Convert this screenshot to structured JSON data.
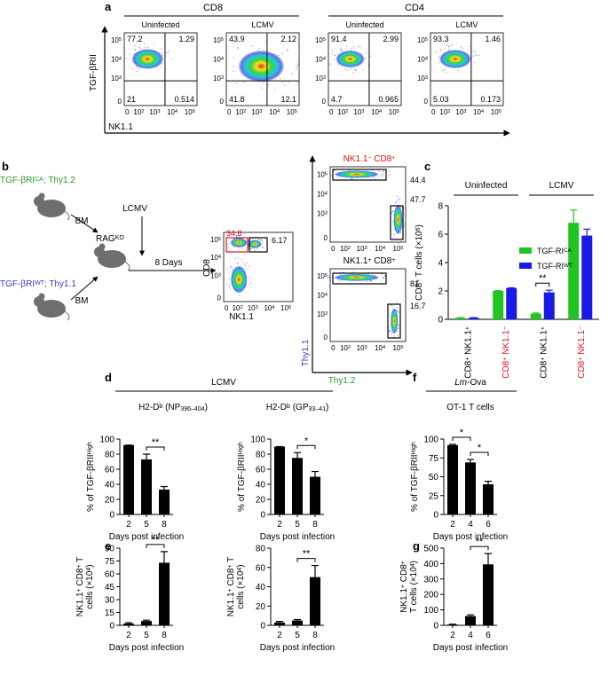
{
  "panel_labels": [
    "a",
    "b",
    "c",
    "d",
    "e",
    "f",
    "g"
  ],
  "panel_a": {
    "groups": [
      "CD8",
      "CD4"
    ],
    "plots": [
      {
        "title": "Uninfected",
        "quadrants": [
          "77.2",
          "1.29",
          "21",
          "0.514"
        ]
      },
      {
        "title": "LCMV",
        "quadrants": [
          "43.9",
          "2.12",
          "41.8",
          "12.1"
        ]
      },
      {
        "title": "Uninfected",
        "quadrants": [
          "91.4",
          "2.99",
          "4.7",
          "0.965"
        ]
      },
      {
        "title": "LCMV",
        "quadrants": [
          "93.3",
          "1.46",
          "5.03",
          "0.173"
        ]
      }
    ],
    "x_ticks": [
      "0",
      [
        "10",
        {
          "sup": "2"
        }
      ],
      [
        "10",
        {
          "sup": "3"
        }
      ],
      [
        "10",
        {
          "sup": "4"
        }
      ],
      [
        "10",
        {
          "sup": "5"
        }
      ]
    ],
    "y_ticks": [
      [
        "10",
        {
          "sup": "5"
        }
      ],
      [
        "10",
        {
          "sup": "4"
        }
      ],
      [
        "10",
        {
          "sup": "3"
        }
      ],
      "0"
    ],
    "y_label": "TGF-βRII",
    "x_label": "NK1.1"
  },
  "panel_b": {
    "donor_1": [
      "TGF-βRI",
      {
        "sup": "CA"
      },
      "; Thy1.2"
    ],
    "donor_2": [
      "TGF-βRI",
      {
        "sup": "WT"
      },
      "; Thy1.1"
    ],
    "bm_labels": [
      "BM",
      "BM"
    ],
    "infection": "LCMV",
    "recipient": [
      "RAG",
      {
        "sup": "KO"
      }
    ],
    "time": "8 Days",
    "gate_plot": {
      "y_label": "CD8",
      "x_label": "NK1.1",
      "gates": [
        "34.8",
        "6.17"
      ]
    },
    "sorted_plots": [
      {
        "title": [
          "NK1.1",
          {
            "sup": "−"
          },
          " CD8",
          {
            "sup": "+"
          }
        ],
        "gates": [
          "44.4",
          "47.7"
        ]
      },
      {
        "title": [
          "NK1.1",
          {
            "sup": "+"
          },
          " CD8",
          {
            "sup": "+"
          }
        ],
        "gates": [
          "81",
          "16.7"
        ]
      }
    ],
    "y_label": "Thy1.1",
    "x_label": "Thy1.2"
  },
  "panel_d_header": "LCMV",
  "panel_f_header": [
    {
      "em": "Lm"
    },
    "-Ova"
  ],
  "chart_data": [
    {
      "type": "bar",
      "headers": [
        "Uninfected",
        "LCMV"
      ],
      "categories": [
        [
          "CD8",
          {
            "sup": "+"
          },
          " NK1.1",
          {
            "sup": "+"
          }
        ],
        [
          "CD8",
          {
            "sup": "+"
          },
          " NK1.1",
          {
            "sup": "−"
          }
        ],
        [
          "CD8",
          {
            "sup": "+"
          },
          " NK1.1",
          {
            "sup": "+"
          }
        ],
        [
          "CD8",
          {
            "sup": "+"
          },
          " NK1.1",
          {
            "sup": "−"
          }
        ]
      ],
      "category_colors": [
        "#000000",
        "#d8141e",
        "#000000",
        "#d8141e"
      ],
      "series": [
        {
          "name": [
            "TGF-RI",
            {
              "sup": "CA"
            }
          ],
          "color": "#22c422",
          "values": [
            0.1,
            2.0,
            0.4,
            6.8
          ],
          "errors": [
            0.02,
            0.02,
            0.05,
            0.9
          ]
        },
        {
          "name": [
            "TGF-RI",
            {
              "sup": "WT"
            }
          ],
          "color": "#1a1ae6",
          "values": [
            0.1,
            2.2,
            1.9,
            5.9
          ],
          "errors": [
            0.02,
            0.02,
            0.15,
            0.45
          ]
        }
      ],
      "ylim": [
        0,
        8
      ],
      "yticks": [
        0,
        2,
        4,
        6,
        8
      ],
      "y_label": [
        "CD8",
        {
          "sup": "+"
        },
        " T cells (×10",
        {
          "sup": "6"
        },
        ")"
      ],
      "annotations": [
        {
          "text": "**",
          "category": 2
        }
      ]
    },
    {
      "type": "bar",
      "title": [
        "H2-D",
        {
          "sup": "b"
        },
        " (NP",
        {
          "sub": "396–404"
        },
        ")"
      ],
      "categories": [
        "2",
        "5",
        "8"
      ],
      "values": [
        92,
        73,
        33
      ],
      "errors": [
        0,
        7,
        4
      ],
      "color": "#000000",
      "ylim": [
        0,
        100
      ],
      "yticks": [
        0,
        20,
        40,
        60,
        80,
        100
      ],
      "x_label": "Days post infection",
      "y_label": [
        "% of TGF-βRII",
        {
          "sup": "High"
        }
      ],
      "annotations": [
        {
          "text": "**",
          "between": [
            1,
            2
          ]
        }
      ]
    },
    {
      "type": "bar",
      "title": [
        "H2-D",
        {
          "sup": "b"
        },
        " (GP",
        {
          "sub": "33–41"
        },
        ")"
      ],
      "categories": [
        "2",
        "5",
        "8"
      ],
      "values": [
        90,
        75,
        50
      ],
      "errors": [
        0,
        7,
        7
      ],
      "color": "#000000",
      "ylim": [
        0,
        100
      ],
      "yticks": [
        0,
        20,
        40,
        60,
        80,
        100
      ],
      "x_label": "Days post infection",
      "y_label": [
        "% of TGF-βRII",
        {
          "sup": "High"
        }
      ],
      "annotations": [
        {
          "text": "*",
          "between": [
            1,
            2
          ]
        }
      ]
    },
    {
      "type": "bar",
      "categories": [
        "2",
        "5",
        "8"
      ],
      "values": [
        2,
        5,
        73
      ],
      "errors": [
        1,
        1,
        13
      ],
      "color": "#000000",
      "ylim": [
        0,
        90
      ],
      "yticks": [
        0,
        15,
        30,
        45,
        60,
        75,
        90
      ],
      "x_label": "Days post infection",
      "y_label": [
        [
          "NK1.1",
          {
            "sup": "+"
          },
          " CD8",
          {
            "sup": "+"
          },
          " T"
        ],
        [
          "cells (×10",
          {
            "sup": "4"
          },
          ")"
        ]
      ],
      "annotations": [
        {
          "text": "**",
          "between": [
            1,
            2
          ]
        }
      ]
    },
    {
      "type": "bar",
      "categories": [
        "2",
        "5",
        "8"
      ],
      "values": [
        3,
        5,
        50
      ],
      "errors": [
        1,
        1,
        12
      ],
      "color": "#000000",
      "ylim": [
        0,
        80
      ],
      "yticks": [
        0,
        20,
        40,
        60,
        80
      ],
      "x_label": "Days post infection",
      "y_label": [
        [
          "NK1.1",
          {
            "sup": "+"
          },
          " CD8",
          {
            "sup": "+"
          },
          " T"
        ],
        [
          "cells (×10",
          {
            "sup": "4"
          },
          ")"
        ]
      ],
      "annotations": [
        {
          "text": "**",
          "between": [
            1,
            2
          ]
        }
      ]
    },
    {
      "type": "bar",
      "title": "OT-1 T cells",
      "categories": [
        "2",
        "4",
        "6"
      ],
      "values": [
        92,
        69,
        40
      ],
      "errors": [
        1,
        4,
        4
      ],
      "color": "#000000",
      "ylim": [
        0,
        100
      ],
      "yticks": [
        0,
        25,
        50,
        75,
        100
      ],
      "x_label": "Days post infection",
      "y_label": [
        "% of TGF-βRII",
        {
          "sup": "High"
        }
      ],
      "annotations": [
        {
          "text": "*",
          "between": [
            0,
            1
          ]
        },
        {
          "text": "*",
          "between": [
            1,
            2
          ]
        }
      ]
    },
    {
      "type": "bar",
      "categories": [
        "2",
        "4",
        "6"
      ],
      "values": [
        5,
        60,
        395
      ],
      "errors": [
        2,
        8,
        70
      ],
      "color": "#000000",
      "ylim": [
        0,
        500
      ],
      "yticks": [
        0,
        100,
        200,
        300,
        400,
        500
      ],
      "x_label": "Days post infection",
      "y_label": [
        [
          "NK1.1",
          {
            "sup": "+"
          },
          " CD8",
          {
            "sup": "+"
          }
        ],
        [
          "T cells (×10",
          {
            "sup": "4"
          },
          ")"
        ]
      ],
      "annotations": [
        {
          "text": "**",
          "between": [
            1,
            2
          ]
        }
      ]
    }
  ]
}
